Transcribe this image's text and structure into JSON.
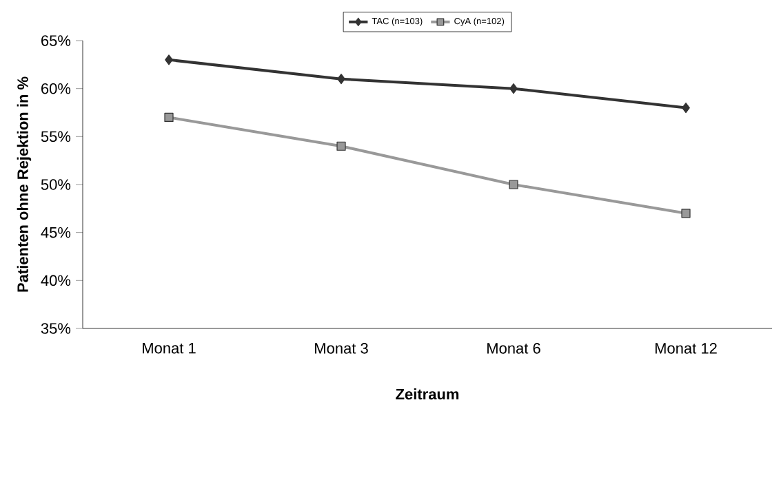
{
  "chart_data": {
    "type": "line",
    "xlabel": "Zeitraum",
    "ylabel": "Patienten ohne Rejektion in %",
    "categories": [
      "Monat 1",
      "Monat 3",
      "Monat 6",
      "Monat 12"
    ],
    "series": [
      {
        "name": "TAC (n=103)",
        "color": "#333333",
        "marker": "diamond",
        "values": [
          63,
          61,
          60,
          58
        ]
      },
      {
        "name": "CyA (n=102)",
        "color": "#999999",
        "marker": "square",
        "values": [
          57,
          54,
          50,
          47
        ]
      }
    ],
    "ylim": [
      35,
      65
    ],
    "yticks": [
      {
        "value": 35,
        "label": "35%"
      },
      {
        "value": 40,
        "label": "40%"
      },
      {
        "value": 45,
        "label": "45%"
      },
      {
        "value": 50,
        "label": "50%"
      },
      {
        "value": 55,
        "label": "55%"
      },
      {
        "value": 60,
        "label": "60%"
      },
      {
        "value": 65,
        "label": "65%"
      }
    ],
    "grid": false,
    "legend": "top",
    "line_style": "solid"
  }
}
